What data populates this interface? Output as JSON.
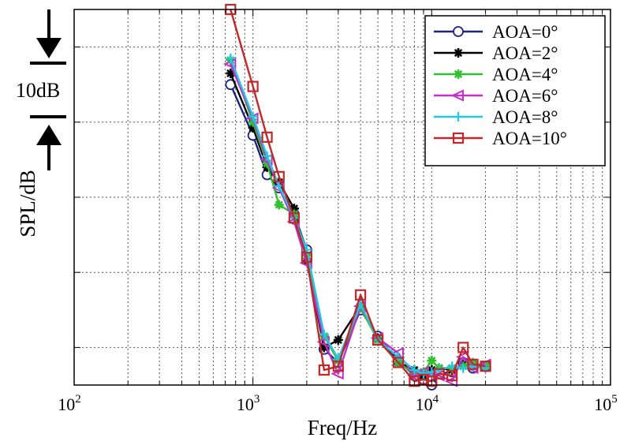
{
  "chart_data": {
    "type": "line",
    "xscale": "log",
    "xlim": [
      100,
      100000
    ],
    "ylim": [
      0,
      10
    ],
    "yticks": [
      1,
      3,
      5,
      7,
      9
    ],
    "xlabel": "Freq/Hz",
    "ylabel": "SPL/dB",
    "x_tick_labels": [
      {
        "base": "10",
        "exp": "2",
        "value": 100
      },
      {
        "base": "10",
        "exp": "3",
        "value": 1000
      },
      {
        "base": "10",
        "exp": "4",
        "value": 10000
      },
      {
        "base": "10",
        "exp": "5",
        "value": 100000
      }
    ],
    "y_unit_note": "relative SPL, 10dB per two gridlines",
    "scale_annotation": "10dB",
    "legend_position": "top-right",
    "grid": true,
    "series": [
      {
        "name": "AOA=0°",
        "color": "#1a237e",
        "marker": "circle",
        "x": [
          750,
          1000,
          1200,
          1400,
          1700,
          2000,
          2500,
          3000,
          4000,
          5000,
          6500,
          8000,
          9000,
          10000,
          11000,
          13000,
          15000,
          17000,
          20000
        ],
        "y": [
          8.0,
          6.65,
          5.6,
          5.25,
          4.55,
          3.6,
          0.95,
          0.6,
          2.0,
          1.3,
          0.65,
          0.25,
          0.15,
          0.0,
          0.3,
          0.35,
          0.6,
          0.45,
          0.5
        ]
      },
      {
        "name": "AOA=2°",
        "color": "#000000",
        "marker": "star",
        "x": [
          750,
          1000,
          1200,
          1400,
          1700,
          2000,
          2500,
          3000,
          4000,
          5000,
          6500,
          8000,
          9000,
          10000,
          11000,
          13000,
          15000,
          17000,
          20000
        ],
        "y": [
          8.3,
          6.85,
          5.8,
          5.4,
          4.7,
          3.3,
          1.0,
          1.2,
          2.1,
          1.25,
          0.6,
          0.4,
          0.25,
          0.4,
          0.45,
          0.4,
          0.55,
          0.55,
          0.5
        ]
      },
      {
        "name": "AOA=4°",
        "color": "#2fbf2f",
        "marker": "star",
        "x": [
          750,
          1000,
          1200,
          1400,
          1700,
          2000,
          2500,
          3000,
          4000,
          5000,
          6500,
          8000,
          9000,
          10000,
          11000,
          13000,
          15000,
          17000,
          20000
        ],
        "y": [
          8.65,
          7.0,
          5.9,
          4.8,
          4.55,
          3.45,
          1.3,
          0.65,
          2.05,
          1.2,
          0.6,
          0.3,
          0.35,
          0.65,
          0.45,
          0.45,
          0.5,
          0.6,
          0.5
        ]
      },
      {
        "name": "AOA=6°",
        "color": "#c030c8",
        "marker": "triangle-left",
        "x": [
          750,
          1000,
          1200,
          1400,
          1700,
          2000,
          2500,
          3000,
          4000,
          5000,
          6500,
          8000,
          9000,
          10000,
          11000,
          13000,
          15000,
          17000,
          20000
        ],
        "y": [
          8.55,
          7.1,
          6.0,
          5.25,
          4.35,
          3.25,
          1.15,
          0.3,
          2.1,
          1.25,
          0.85,
          0.25,
          0.35,
          0.3,
          0.25,
          0.1,
          0.75,
          0.45,
          0.55
        ]
      },
      {
        "name": "AOA=8°",
        "color": "#22c8e0",
        "marker": "plus",
        "x": [
          750,
          1000,
          1200,
          1400,
          1700,
          2000,
          2500,
          3000,
          4000,
          5000,
          6500,
          8000,
          9000,
          10000,
          11000,
          13000,
          15000,
          17000,
          20000
        ],
        "y": [
          8.7,
          7.15,
          6.1,
          5.3,
          4.45,
          3.6,
          1.35,
          0.7,
          2.15,
          1.2,
          0.75,
          0.4,
          0.3,
          0.35,
          0.4,
          0.5,
          0.45,
          0.5,
          0.45
        ]
      },
      {
        "name": "AOA=10°",
        "color": "#c0282a",
        "marker": "square",
        "x": [
          750,
          1000,
          1200,
          1400,
          1700,
          2000,
          2500,
          3000,
          4000,
          5000,
          6500,
          8000,
          9000,
          10000,
          11000,
          13000,
          15000,
          17000,
          20000
        ],
        "y": [
          10.0,
          7.95,
          6.6,
          5.55,
          4.45,
          3.4,
          0.4,
          0.5,
          2.4,
          1.2,
          0.6,
          0.1,
          0.15,
          0.1,
          0.3,
          0.25,
          1.0,
          0.55,
          0.5
        ]
      }
    ]
  }
}
